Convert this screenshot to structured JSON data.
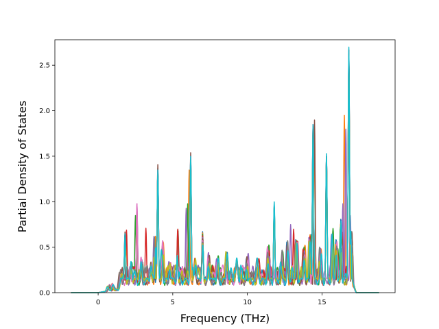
{
  "chart_data": {
    "type": "line",
    "title": "",
    "xlabel": "Frequency (THz)",
    "ylabel": "Partial Density of States",
    "xlim": [
      -2.9,
      19.9
    ],
    "ylim": [
      0.0,
      2.78
    ],
    "xticks": [
      0,
      5,
      10,
      15
    ],
    "yticks": [
      0.0,
      0.5,
      1.0,
      1.5,
      2.0,
      2.5
    ],
    "xtick_labels": [
      "0",
      "5",
      "10",
      "15"
    ],
    "ytick_labels": [
      "0.0",
      "0.5",
      "1.0",
      "1.5",
      "2.0",
      "2.5"
    ],
    "grid": false,
    "legend": "none",
    "x_range": [
      -1.8,
      18.8
    ],
    "note_series": "Many overlapping partial-DOS curves (one per atom/projection) drawn in the default color cycle; values sampled at key frequencies.",
    "series": [
      {
        "color": "#1f77b4",
        "peaks": [
          [
            1.8,
            0.6
          ],
          [
            2.6,
            0.85
          ],
          [
            4.0,
            1.32
          ],
          [
            6.2,
            1.45
          ],
          [
            11.8,
            0.92
          ],
          [
            14.4,
            1.8
          ],
          [
            15.3,
            1.45
          ],
          [
            16.8,
            2.62
          ]
        ]
      },
      {
        "color": "#ff7f0e",
        "peaks": [
          [
            1.9,
            0.5
          ],
          [
            2.6,
            0.7
          ],
          [
            4.0,
            1.2
          ],
          [
            6.1,
            1.3
          ],
          [
            11.8,
            0.85
          ],
          [
            14.5,
            1.7
          ],
          [
            15.3,
            1.3
          ],
          [
            16.5,
            1.9
          ],
          [
            16.8,
            2.5
          ]
        ]
      },
      {
        "color": "#2ca02c",
        "peaks": [
          [
            1.8,
            0.55
          ],
          [
            2.5,
            0.8
          ],
          [
            4.0,
            1.3
          ],
          [
            6.0,
            0.93
          ],
          [
            6.2,
            1.4
          ],
          [
            11.8,
            0.9
          ],
          [
            14.4,
            1.75
          ],
          [
            15.3,
            1.4
          ],
          [
            16.8,
            2.55
          ]
        ]
      },
      {
        "color": "#d62728",
        "peaks": [
          [
            1.9,
            0.64
          ],
          [
            3.2,
            0.66
          ],
          [
            4.0,
            1.3
          ],
          [
            6.2,
            1.35
          ],
          [
            13.1,
            0.65
          ],
          [
            14.4,
            1.8
          ],
          [
            15.3,
            1.45
          ],
          [
            16.8,
            2.62
          ]
        ]
      },
      {
        "color": "#9467bd",
        "peaks": [
          [
            2.6,
            0.93
          ],
          [
            4.0,
            1.25
          ],
          [
            5.9,
            0.88
          ],
          [
            6.2,
            1.4
          ],
          [
            12.9,
            0.7
          ],
          [
            14.4,
            1.7
          ],
          [
            16.4,
            0.93
          ],
          [
            16.6,
            1.75
          ],
          [
            16.9,
            0.8
          ]
        ]
      },
      {
        "color": "#8c564b",
        "peaks": [
          [
            1.8,
            0.62
          ],
          [
            2.6,
            0.88
          ],
          [
            4.0,
            1.36
          ],
          [
            6.2,
            1.49
          ],
          [
            11.8,
            0.9
          ],
          [
            14.5,
            1.85
          ],
          [
            15.3,
            1.45
          ],
          [
            16.8,
            2.58
          ]
        ]
      },
      {
        "color": "#e377c2",
        "peaks": [
          [
            2.6,
            0.93
          ],
          [
            4.0,
            1.3
          ],
          [
            6.2,
            1.45
          ],
          [
            14.4,
            1.8
          ],
          [
            16.8,
            2.5
          ]
        ]
      },
      {
        "color": "#7f7f7f",
        "peaks": [
          [
            1.8,
            0.58
          ],
          [
            4.0,
            1.28
          ],
          [
            6.2,
            1.42
          ],
          [
            11.8,
            0.88
          ],
          [
            14.4,
            1.78
          ],
          [
            15.3,
            1.42
          ],
          [
            16.8,
            2.55
          ]
        ]
      },
      {
        "color": "#bcbd22",
        "peaks": [
          [
            1.8,
            0.55
          ],
          [
            4.0,
            1.25
          ],
          [
            6.2,
            1.4
          ],
          [
            11.8,
            0.88
          ],
          [
            14.4,
            1.75
          ],
          [
            15.3,
            1.4
          ],
          [
            16.8,
            2.5
          ]
        ]
      },
      {
        "color": "#17becf",
        "peaks": [
          [
            1.8,
            0.6
          ],
          [
            4.0,
            1.3
          ],
          [
            6.2,
            1.45
          ],
          [
            11.8,
            0.95
          ],
          [
            14.4,
            1.8
          ],
          [
            15.3,
            1.48
          ],
          [
            16.8,
            2.65
          ]
        ]
      }
    ]
  }
}
